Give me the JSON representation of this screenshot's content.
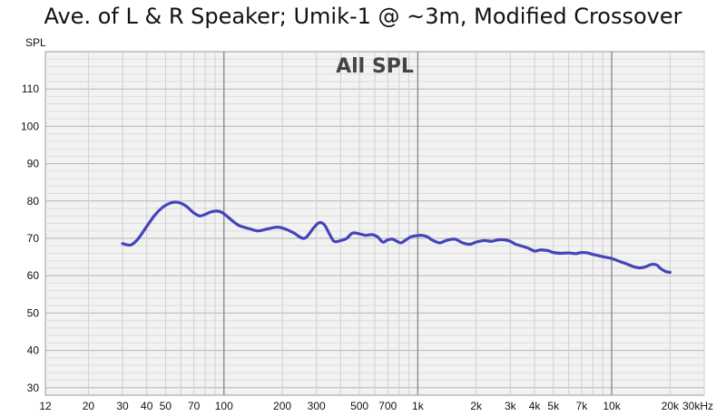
{
  "chart_data": {
    "type": "line",
    "title": "Ave. of L & R Speaker; Umik-1 @ ~3m, Modified Crossover",
    "panel_label": "All SPL",
    "ylabel": "SPL",
    "xlabel": "",
    "x_scale": "log",
    "xlim": [
      12,
      30000
    ],
    "ylim": [
      28,
      120
    ],
    "grid": true,
    "y_ticks": [
      30,
      40,
      50,
      60,
      70,
      80,
      90,
      100,
      110
    ],
    "x_ticks": [
      {
        "value": 12,
        "label": "12"
      },
      {
        "value": 20,
        "label": "20"
      },
      {
        "value": 30,
        "label": "30"
      },
      {
        "value": 40,
        "label": "40"
      },
      {
        "value": 50,
        "label": "50"
      },
      {
        "value": 70,
        "label": "70"
      },
      {
        "value": 100,
        "label": "100"
      },
      {
        "value": 200,
        "label": "200"
      },
      {
        "value": 300,
        "label": "300"
      },
      {
        "value": 500,
        "label": "500"
      },
      {
        "value": 700,
        "label": "700"
      },
      {
        "value": 1000,
        "label": "1k"
      },
      {
        "value": 2000,
        "label": "2k"
      },
      {
        "value": 3000,
        "label": "3k"
      },
      {
        "value": 4000,
        "label": "4k"
      },
      {
        "value": 5000,
        "label": "5k"
      },
      {
        "value": 7000,
        "label": "7k"
      },
      {
        "value": 10000,
        "label": "10k"
      },
      {
        "value": 20000,
        "label": "20k"
      },
      {
        "value": 30000,
        "label": "30kHz"
      }
    ],
    "line_color": "#4444bb",
    "series": [
      {
        "x": [
          30,
          33,
          36,
          40,
          44,
          48,
          52,
          56,
          60,
          64,
          70,
          75,
          80,
          85,
          90,
          95,
          100,
          110,
          120,
          135,
          150,
          170,
          190,
          210,
          230,
          260,
          290,
          310,
          330,
          350,
          370,
          400,
          430,
          460,
          500,
          540,
          580,
          620,
          660,
          700,
          740,
          780,
          820,
          870,
          920,
          980,
          1050,
          1120,
          1200,
          1300,
          1400,
          1550,
          1700,
          1850,
          2000,
          2200,
          2400,
          2600,
          2800,
          3000,
          3200,
          3400,
          3700,
          4000,
          4300,
          4700,
          5000,
          5500,
          6000,
          6500,
          7000,
          7500,
          8000,
          9000,
          10000,
          11000,
          12000,
          13000,
          14000,
          15000,
          16000,
          17000,
          18000,
          19000,
          20000
        ],
        "y": [
          68.6,
          68.2,
          69.8,
          73.2,
          76.2,
          78.2,
          79.3,
          79.7,
          79.4,
          78.6,
          76.8,
          76.0,
          76.4,
          77.0,
          77.3,
          77.2,
          76.6,
          74.8,
          73.4,
          72.6,
          72.0,
          72.6,
          73.0,
          72.4,
          71.4,
          70.0,
          72.8,
          74.2,
          73.6,
          71.2,
          69.2,
          69.4,
          70.0,
          71.4,
          71.2,
          70.8,
          71.0,
          70.4,
          69.0,
          69.6,
          69.8,
          69.2,
          68.8,
          69.6,
          70.4,
          70.7,
          70.8,
          70.4,
          69.4,
          68.8,
          69.4,
          69.8,
          68.8,
          68.4,
          69.0,
          69.4,
          69.2,
          69.6,
          69.6,
          69.2,
          68.4,
          68.0,
          67.4,
          66.6,
          66.9,
          66.7,
          66.2,
          66.0,
          66.1,
          65.9,
          66.2,
          66.1,
          65.7,
          65.1,
          64.6,
          63.8,
          63.1,
          62.4,
          62.1,
          62.4,
          63.0,
          62.9,
          61.8,
          61.1,
          60.9
        ]
      }
    ]
  }
}
